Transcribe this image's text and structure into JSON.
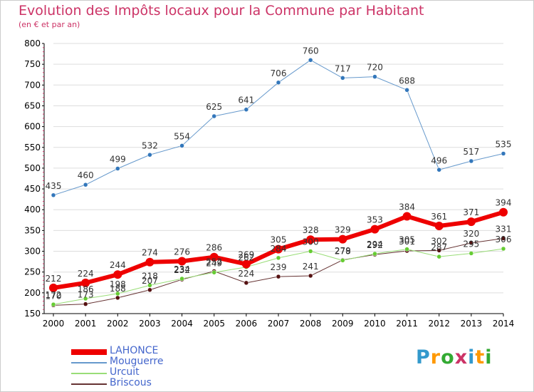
{
  "title": "Evolution des Impôts locaux pour la Commune par Habitant",
  "subtitle": "(en € et par an)",
  "logo": {
    "text": "Proxiti",
    "colors": [
      "#3399cc",
      "#ff9900",
      "#33aa33",
      "#cc3366"
    ]
  },
  "colors": {
    "title": "#cc3366",
    "axis": "#000000",
    "grid": "#dddddd",
    "minor_tick": "#cc3366"
  },
  "chart_data": {
    "type": "line",
    "x": [
      "2000",
      "2001",
      "2002",
      "2003",
      "2004",
      "2005",
      "2006",
      "2007",
      "2008",
      "2009",
      "2010",
      "2011",
      "2012",
      "2013",
      "2014"
    ],
    "ylim": [
      150,
      800
    ],
    "yticks": [
      "150",
      "200",
      "250",
      "300",
      "350",
      "400",
      "450",
      "500",
      "550",
      "600",
      "650",
      "700",
      "750",
      "800"
    ],
    "grid": true,
    "legend": "bottom-left",
    "series": [
      {
        "name": "Briscous",
        "color": "#663333",
        "dot": "#551111",
        "width": 1,
        "radius": 3,
        "values": [
          170,
          173,
          188,
          207,
          232,
          252,
          224,
          239,
          241,
          279,
          292,
          301,
          302,
          320,
          331
        ],
        "labels": [
          "170",
          "173",
          "188",
          "207",
          "232",
          "252",
          "224",
          "239",
          "241",
          "279",
          "292",
          "301",
          "302",
          "320",
          "331"
        ]
      },
      {
        "name": "Urcuit",
        "color": "#99dd77",
        "dot": "#66cc33",
        "width": 1,
        "radius": 3,
        "values": [
          172,
          186,
          198,
          218,
          234,
          249,
          262,
          284,
          300,
          278,
          294,
          305,
          287,
          295,
          306
        ],
        "labels": [
          "172",
          "186",
          "198",
          "218",
          "234",
          "249",
          "262",
          "284",
          "300",
          "278",
          "294",
          "305",
          "287",
          "295",
          "306"
        ]
      },
      {
        "name": "Mouguerre",
        "color": "#6699cc",
        "dot": "#3377bb",
        "width": 1,
        "radius": 3,
        "values": [
          435,
          460,
          499,
          532,
          554,
          625,
          641,
          706,
          760,
          717,
          720,
          688,
          496,
          517,
          535
        ],
        "labels": [
          "435",
          "460",
          "499",
          "532",
          "554",
          "625",
          "641",
          "706",
          "760",
          "717",
          "720",
          "688",
          "496",
          "517",
          "535"
        ]
      },
      {
        "name": "LAHONCE",
        "color": "#ee0000",
        "dot": "#ee0000",
        "width": 6,
        "radius": 6,
        "values": [
          212,
          224,
          244,
          274,
          276,
          286,
          269,
          305,
          328,
          329,
          353,
          384,
          361,
          371,
          394
        ],
        "labels": [
          "212",
          "224",
          "244",
          "274",
          "276",
          "286",
          "269",
          "305",
          "328",
          "329",
          "353",
          "384",
          "361",
          "371",
          "394"
        ]
      }
    ]
  },
  "legend_items": [
    {
      "name": "LAHONCE",
      "color": "#ee0000",
      "height": 8
    },
    {
      "name": "Mouguerre",
      "color": "#6699cc",
      "height": 2
    },
    {
      "name": "Urcuit",
      "color": "#99dd77",
      "height": 2
    },
    {
      "name": "Briscous",
      "color": "#663333",
      "height": 2
    }
  ]
}
